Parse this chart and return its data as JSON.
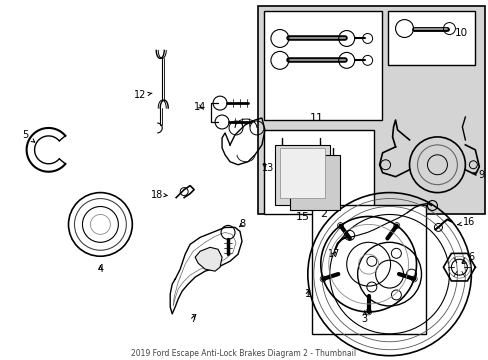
{
  "title": "2019 Ford Escape Anti-Lock Brakes Diagram 2 - Thumbnail",
  "bg_color": "#ffffff",
  "line_color": "#000000",
  "gray_box": "#d8d8d8",
  "fig_width": 4.89,
  "fig_height": 3.6,
  "dpi": 100
}
